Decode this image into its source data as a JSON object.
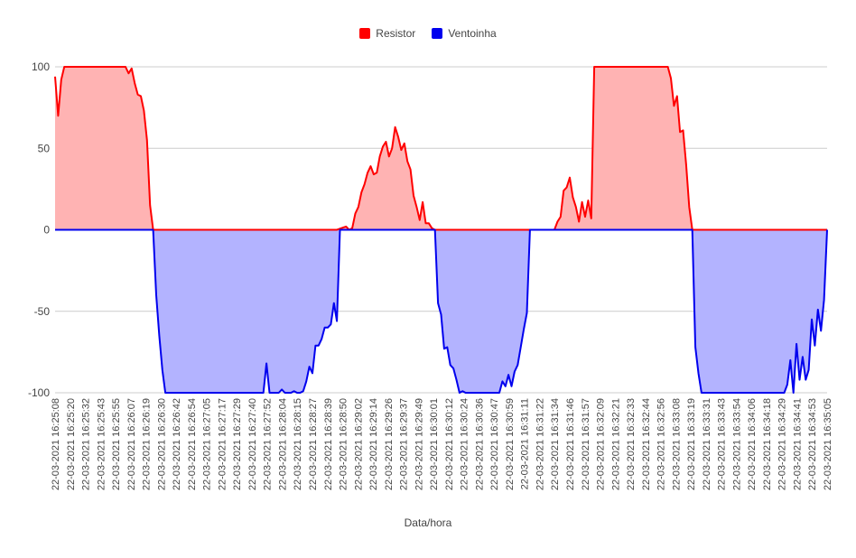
{
  "chart_data": {
    "type": "area",
    "title": "",
    "xlabel": "Data/hora",
    "ylabel": "",
    "ylim": [
      -100,
      100
    ],
    "yticks": [
      100,
      50,
      0,
      -50,
      -100
    ],
    "legend_position": "top",
    "grid": true,
    "x_tick_labels": [
      "22-03-2021 16:25:08",
      "22-03-2021 16:25:20",
      "22-03-2021 16:25:32",
      "22-03-2021 16:25:43",
      "22-03-2021 16:25:55",
      "22-03-2021 16:26:07",
      "22-03-2021 16:26:19",
      "22-03-2021 16:26:30",
      "22-03-2021 16:26:42",
      "22-03-2021 16:26:54",
      "22-03-2021 16:27:05",
      "22-03-2021 16:27:17",
      "22-03-2021 16:27:29",
      "22-03-2021 16:27:40",
      "22-03-2021 16:27:52",
      "22-03-2021 16:28:04",
      "22-03-2021 16:28:15",
      "22-03-2021 16:28:27",
      "22-03-2021 16:28:39",
      "22-03-2021 16:28:50",
      "22-03-2021 16:29:02",
      "22-03-2021 16:29:14",
      "22-03-2021 16:29:26",
      "22-03-2021 16:29:37",
      "22-03-2021 16:29:49",
      "22-03-2021 16:30:01",
      "22-03-2021 16:30:12",
      "22-03-2021 16:30:24",
      "22-03-2021 16:30:36",
      "22-03-2021 16:30:47",
      "22-03-2021 16:30:59",
      "22-03-2021 16:31:11",
      "22-03-2021 16:31:22",
      "22-03-2021 16:31:34",
      "22-03-2021 16:31:46",
      "22-03-2021 16:31:57",
      "22-03-2021 16:32:09",
      "22-03-2021 16:32:21",
      "22-03-2021 16:32:33",
      "22-03-2021 16:32:44",
      "22-03-2021 16:32:56",
      "22-03-2021 16:33:08",
      "22-03-2021 16:33:19",
      "22-03-2021 16:33:31",
      "22-03-2021 16:33:43",
      "22-03-2021 16:33:54",
      "22-03-2021 16:34:06",
      "22-03-2021 16:34:18",
      "22-03-2021 16:34:29",
      "22-03-2021 16:34:41",
      "22-03-2021 16:34:53",
      "22-03-2021 16:35:05"
    ],
    "series": [
      {
        "name": "Resistor",
        "color": "#ff0000",
        "fill": "#ffb3b3",
        "values": [
          94,
          70,
          92,
          100,
          100,
          100,
          100,
          100,
          100,
          100,
          100,
          100,
          100,
          100,
          100,
          100,
          100,
          100,
          100,
          100,
          100,
          100,
          100,
          100,
          100,
          96,
          99,
          90,
          83,
          82,
          73,
          55,
          15,
          0,
          0,
          0,
          0,
          0,
          0,
          0,
          0,
          0,
          0,
          0,
          0,
          0,
          0,
          0,
          0,
          0,
          0,
          0,
          0,
          0,
          0,
          0,
          0,
          0,
          0,
          0,
          0,
          0,
          0,
          0,
          0,
          0,
          0,
          0,
          0,
          0,
          0,
          0,
          0,
          0,
          0,
          0,
          0,
          0,
          0,
          0,
          0,
          0,
          0,
          0,
          0,
          0,
          0,
          0,
          0,
          0,
          0,
          0,
          0,
          0,
          0,
          0,
          0,
          0,
          0,
          0,
          0,
          0,
          0,
          0,
          0,
          0,
          0,
          0,
          0,
          0,
          0,
          0,
          0,
          0,
          0,
          0,
          0,
          0,
          0,
          0,
          0,
          0,
          0,
          0,
          0,
          0,
          0,
          0,
          0,
          0,
          0,
          0,
          0,
          0,
          0,
          0,
          0,
          0,
          0,
          0,
          0,
          0,
          0,
          0,
          0,
          0,
          0,
          0,
          0,
          0,
          0,
          0,
          0,
          0,
          0,
          0,
          0,
          0,
          0,
          0,
          0,
          0,
          0,
          0,
          0,
          0,
          0,
          0,
          0,
          0,
          0,
          0,
          0,
          0,
          0,
          0,
          0,
          0,
          0,
          0,
          0,
          0,
          0,
          0,
          0,
          0,
          0,
          0,
          0,
          0,
          0,
          0,
          0,
          0,
          0,
          0,
          0,
          0,
          0,
          0,
          0,
          0,
          0,
          0,
          0,
          0,
          0,
          0,
          0,
          0,
          0,
          0,
          0,
          0,
          0,
          0,
          0,
          0,
          0,
          0,
          0,
          0,
          0,
          0,
          0,
          0,
          0,
          0,
          0,
          0,
          0,
          0,
          0,
          0,
          0,
          0,
          0,
          0,
          0,
          0,
          0,
          0,
          0,
          0,
          0,
          0,
          0,
          0,
          0,
          0,
          0,
          0,
          0,
          0,
          0,
          0,
          0,
          0,
          0,
          0,
          0,
          0,
          0,
          0,
          0,
          0,
          0,
          0,
          0,
          0,
          0,
          0,
          0,
          0,
          0,
          0,
          0,
          0,
          0,
          0,
          0,
          0,
          0,
          0,
          0,
          0,
          0,
          0,
          0,
          0,
          0
        ]
      },
      {
        "name": "Ventoinha",
        "color": "#0000ee",
        "fill": "#b3b3ff",
        "values": [
          0
        ]
      }
    ],
    "points": {
      "Resistor": [
        [
          0,
          94
        ],
        [
          1,
          70
        ],
        [
          2,
          92
        ],
        [
          3,
          100
        ],
        [
          8,
          100
        ],
        [
          23,
          100
        ],
        [
          24,
          96
        ],
        [
          25,
          99
        ],
        [
          26,
          90
        ],
        [
          27,
          83
        ],
        [
          28,
          82
        ],
        [
          29,
          73
        ],
        [
          30,
          55
        ],
        [
          31,
          15
        ],
        [
          32,
          0
        ],
        [
          92,
          0
        ],
        [
          95,
          2
        ],
        [
          96,
          0
        ],
        [
          97,
          1
        ],
        [
          98,
          10
        ],
        [
          99,
          14
        ],
        [
          100,
          23
        ],
        [
          101,
          28
        ],
        [
          102,
          35
        ],
        [
          103,
          39
        ],
        [
          104,
          34
        ],
        [
          105,
          35
        ],
        [
          106,
          45
        ],
        [
          107,
          51
        ],
        [
          108,
          54
        ],
        [
          109,
          45
        ],
        [
          110,
          50
        ],
        [
          111,
          63
        ],
        [
          112,
          57
        ],
        [
          113,
          49
        ],
        [
          114,
          53
        ],
        [
          115,
          42
        ],
        [
          116,
          37
        ],
        [
          117,
          21
        ],
        [
          118,
          14
        ],
        [
          119,
          6
        ],
        [
          120,
          17
        ],
        [
          121,
          4
        ],
        [
          122,
          4
        ],
        [
          123,
          1
        ],
        [
          124,
          0
        ],
        [
          162,
          0
        ],
        [
          163,
          0
        ],
        [
          164,
          5
        ],
        [
          165,
          8
        ],
        [
          166,
          24
        ],
        [
          167,
          26
        ],
        [
          168,
          32
        ],
        [
          169,
          20
        ],
        [
          170,
          14
        ],
        [
          171,
          5
        ],
        [
          172,
          17
        ],
        [
          173,
          8
        ],
        [
          174,
          18
        ],
        [
          175,
          7
        ],
        [
          176,
          100
        ],
        [
          200,
          100
        ],
        [
          201,
          93
        ],
        [
          202,
          76
        ],
        [
          203,
          82
        ],
        [
          204,
          60
        ],
        [
          205,
          61
        ],
        [
          206,
          40
        ],
        [
          207,
          14
        ],
        [
          208,
          0
        ],
        [
          252,
          0
        ]
      ],
      "Ventoinha": [
        [
          0,
          0
        ],
        [
          32,
          0
        ],
        [
          33,
          -40
        ],
        [
          34,
          -65
        ],
        [
          35,
          -86
        ],
        [
          36,
          -100
        ],
        [
          68,
          -100
        ],
        [
          69,
          -82
        ],
        [
          70,
          -100
        ],
        [
          73,
          -100
        ],
        [
          74,
          -98
        ],
        [
          75,
          -100
        ],
        [
          77,
          -100
        ],
        [
          78,
          -99
        ],
        [
          79,
          -100
        ],
        [
          80,
          -100
        ],
        [
          81,
          -99
        ],
        [
          82,
          -93
        ],
        [
          83,
          -84
        ],
        [
          84,
          -88
        ],
        [
          85,
          -71
        ],
        [
          86,
          -71
        ],
        [
          87,
          -67
        ],
        [
          88,
          -60
        ],
        [
          89,
          -60
        ],
        [
          90,
          -58
        ],
        [
          91,
          -45
        ],
        [
          92,
          -56
        ],
        [
          93,
          0
        ],
        [
          124,
          0
        ],
        [
          125,
          -45
        ],
        [
          126,
          -52
        ],
        [
          127,
          -73
        ],
        [
          128,
          -72
        ],
        [
          129,
          -83
        ],
        [
          130,
          -85
        ],
        [
          131,
          -92
        ],
        [
          132,
          -100
        ],
        [
          133,
          -99
        ],
        [
          134,
          -100
        ],
        [
          145,
          -100
        ],
        [
          146,
          -93
        ],
        [
          147,
          -96
        ],
        [
          148,
          -89
        ],
        [
          149,
          -96
        ],
        [
          150,
          -87
        ],
        [
          151,
          -83
        ],
        [
          152,
          -72
        ],
        [
          153,
          -61
        ],
        [
          154,
          -51
        ],
        [
          155,
          0
        ],
        [
          208,
          0
        ],
        [
          209,
          -72
        ],
        [
          210,
          -88
        ],
        [
          211,
          -100
        ],
        [
          238,
          -100
        ],
        [
          239,
          -95
        ],
        [
          240,
          -80
        ],
        [
          241,
          -100
        ],
        [
          242,
          -70
        ],
        [
          243,
          -92
        ],
        [
          244,
          -78
        ],
        [
          245,
          -92
        ],
        [
          246,
          -86
        ],
        [
          247,
          -55
        ],
        [
          248,
          -71
        ],
        [
          249,
          -49
        ],
        [
          250,
          -62
        ],
        [
          251,
          -43
        ],
        [
          252,
          0
        ]
      ]
    }
  }
}
